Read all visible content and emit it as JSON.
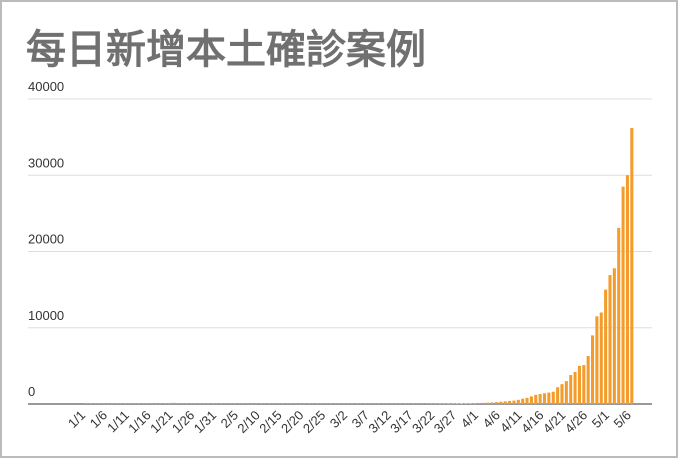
{
  "chart_data": {
    "type": "bar",
    "title": "每日新增本土確診案例",
    "categories": [
      "1/1",
      null,
      null,
      null,
      null,
      "1/6",
      null,
      null,
      null,
      null,
      "1/11",
      null,
      null,
      null,
      null,
      "1/16",
      null,
      null,
      null,
      null,
      "1/21",
      null,
      null,
      null,
      null,
      "1/26",
      null,
      null,
      null,
      null,
      "1/31",
      null,
      null,
      null,
      null,
      "2/5",
      null,
      null,
      null,
      null,
      "2/10",
      null,
      null,
      null,
      null,
      "2/15",
      null,
      null,
      null,
      null,
      "2/20",
      null,
      null,
      null,
      null,
      "2/25",
      null,
      null,
      null,
      null,
      "3/2",
      null,
      null,
      null,
      null,
      "3/7",
      null,
      null,
      null,
      null,
      "3/12",
      null,
      null,
      null,
      null,
      "3/17",
      null,
      null,
      null,
      null,
      "3/22",
      null,
      null,
      null,
      null,
      "3/27",
      null,
      null,
      null,
      null,
      "4/1",
      null,
      null,
      null,
      null,
      "4/6",
      null,
      null,
      null,
      null,
      "4/11",
      null,
      null,
      null,
      null,
      "4/16",
      null,
      null,
      null,
      null,
      "4/21",
      null,
      null,
      null,
      null,
      "4/26",
      null,
      null,
      null,
      null,
      "5/1",
      null,
      null,
      null,
      null,
      "5/6"
    ],
    "values": [
      20,
      20,
      20,
      20,
      20,
      20,
      20,
      20,
      20,
      20,
      20,
      20,
      20,
      20,
      20,
      20,
      20,
      20,
      20,
      20,
      150,
      20,
      20,
      20,
      20,
      20,
      20,
      20,
      20,
      20,
      20,
      20,
      20,
      20,
      20,
      20,
      20,
      20,
      20,
      20,
      20,
      20,
      20,
      20,
      20,
      20,
      20,
      20,
      20,
      20,
      20,
      20,
      20,
      20,
      20,
      20,
      20,
      20,
      20,
      20,
      20,
      20,
      20,
      20,
      20,
      20,
      20,
      20,
      20,
      20,
      20,
      20,
      20,
      20,
      20,
      20,
      20,
      20,
      20,
      30,
      30,
      40,
      40,
      50,
      50,
      60,
      70,
      80,
      90,
      100,
      130,
      150,
      180,
      200,
      250,
      300,
      350,
      400,
      450,
      550,
      700,
      800,
      1000,
      1200,
      1300,
      1400,
      1500,
      1600,
      2200,
      2600,
      3000,
      3800,
      4200,
      5000,
      5100,
      6300,
      9000,
      11500,
      12000,
      15000,
      16900,
      17800,
      23100,
      28500,
      30000,
      36200
    ],
    "color": "#f39c2b",
    "ylim": [
      0,
      40000
    ],
    "yticks": [
      0,
      10000,
      20000,
      30000,
      40000
    ],
    "grid": true
  }
}
